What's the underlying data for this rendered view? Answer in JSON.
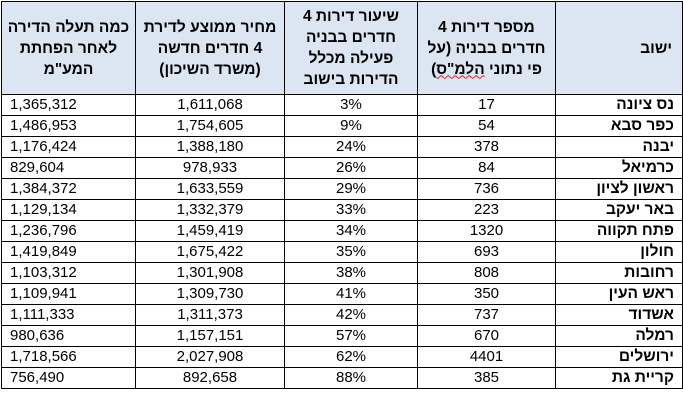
{
  "table": {
    "headers": {
      "years": "כמה תעלה הדירה לאחר הפחתת המע\"מ",
      "price": "מחיר ממוצע לדירת 4 חדרים חדשה (משרד השיכון)",
      "rate": "שיעור דירות 4 חדרים בבניה פעילה מכלל הדירות בישוב",
      "apts_main": "מספר דירות 4 חדרים בבניה (על פי נתוני ",
      "apts_abbr": "הלמ\"ס",
      "apts_close": ")",
      "town": "ישוב"
    },
    "rows": [
      {
        "town": "נס ציונה",
        "apts": "17",
        "rate": "3%",
        "price": "1,611,068",
        "after_vat": "1,365,312"
      },
      {
        "town": "כפר סבא",
        "apts": "54",
        "rate": "9%",
        "price": "1,754,605",
        "after_vat": "1,486,953"
      },
      {
        "town": "יבנה",
        "apts": "378",
        "rate": "24%",
        "price": "1,388,180",
        "after_vat": "1,176,424"
      },
      {
        "town": "כרמיאל",
        "apts": "84",
        "rate": "26%",
        "price": "978,933",
        "after_vat": "829,604"
      },
      {
        "town": "ראשון לציון",
        "apts": "736",
        "rate": "29%",
        "price": "1,633,559",
        "after_vat": "1,384,372"
      },
      {
        "town": "באר יעקב",
        "apts": "223",
        "rate": "33%",
        "price": "1,332,379",
        "after_vat": "1,129,134"
      },
      {
        "town": "פתח תקווה",
        "apts": "1320",
        "rate": "34%",
        "price": "1,459,419",
        "after_vat": "1,236,796"
      },
      {
        "town": "חולון",
        "apts": "693",
        "rate": "35%",
        "price": "1,675,422",
        "after_vat": "1,419,849"
      },
      {
        "town": "רחובות",
        "apts": "808",
        "rate": "38%",
        "price": "1,301,908",
        "after_vat": "1,103,312"
      },
      {
        "town": "ראש העין",
        "apts": "350",
        "rate": "41%",
        "price": "1,309,730",
        "after_vat": "1,109,941"
      },
      {
        "town": "אשדוד",
        "apts": "737",
        "rate": "42%",
        "price": "1,311,373",
        "after_vat": "1,111,333"
      },
      {
        "town": "רמלה",
        "apts": "670",
        "rate": "57%",
        "price": "1,157,151",
        "after_vat": "980,636"
      },
      {
        "town": "ירושלים",
        "apts": "4401",
        "rate": "62%",
        "price": "2,027,908",
        "after_vat": "1,718,566"
      },
      {
        "town": "קריית גת",
        "apts": "385",
        "rate": "88%",
        "price": "892,658",
        "after_vat": "756,490"
      }
    ]
  },
  "colors": {
    "header_bg": "#dce6f2",
    "border": "#000000",
    "spellcheck_underline": "#e02020"
  }
}
